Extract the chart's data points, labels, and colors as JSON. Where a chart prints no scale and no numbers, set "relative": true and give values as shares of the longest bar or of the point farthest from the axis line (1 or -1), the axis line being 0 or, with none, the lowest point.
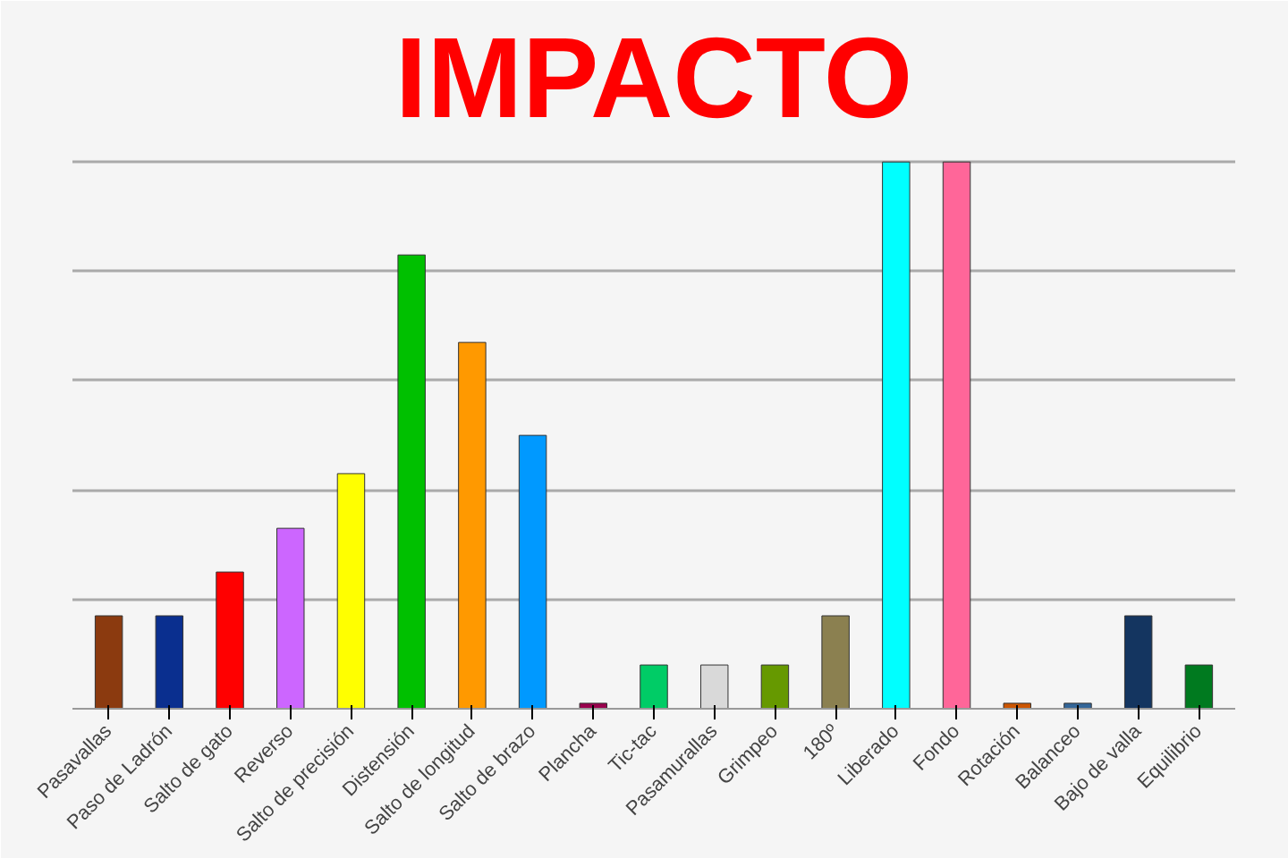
{
  "chart_data": {
    "type": "bar",
    "title": "IMPACTO",
    "relative": true,
    "grid": "y",
    "categories": [
      "Pasavallas",
      "Paso de Ladrón",
      "Salto de gato",
      "Reverso",
      "Salto de precisión",
      "Distensión",
      "Salto de longitud",
      "Salto de brazo",
      "Plancha",
      "Tic-tac",
      "Pasamurallas",
      "Grimpeo",
      "180º",
      "Liberado",
      "Fondo",
      "Rotación",
      "Balanceo",
      "Bajo de valla",
      "Equilibrio"
    ],
    "values": [
      0.17,
      0.17,
      0.25,
      0.33,
      0.43,
      0.83,
      0.67,
      0.5,
      0.01,
      0.08,
      0.08,
      0.08,
      0.17,
      1,
      1,
      0.01,
      0.01,
      0.17,
      0.08
    ],
    "colors": [
      "#8b3a0f",
      "#0a2f8f",
      "#ff0000",
      "#cc66ff",
      "#ffff00",
      "#00c000",
      "#ff9900",
      "#0099ff",
      "#99004d",
      "#00cc66",
      "#d9d9d9",
      "#669900",
      "#8b8050",
      "#00ffff",
      "#ff6699",
      "#cc5500",
      "#336699",
      "#143560",
      "#007a1f"
    ]
  }
}
